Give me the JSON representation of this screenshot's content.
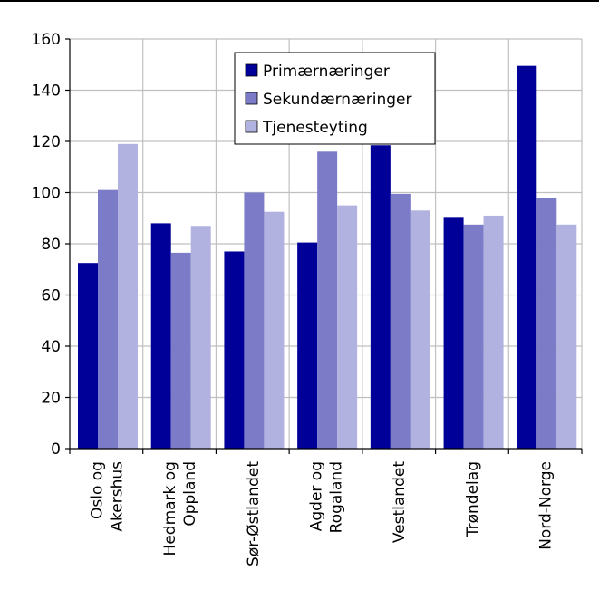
{
  "chart_data": {
    "type": "bar",
    "categories": [
      [
        "Oslo og",
        "Akershus"
      ],
      [
        "Hedmark og",
        "Oppland"
      ],
      [
        "Sør-Østlandet"
      ],
      [
        "Agder og",
        "Rogaland"
      ],
      [
        "Vestlandet"
      ],
      [
        "Trøndelag"
      ],
      [
        "Nord-Norge"
      ]
    ],
    "series": [
      {
        "name": "Primærnæringer",
        "color": "#000099",
        "values": [
          72.5,
          88,
          77,
          80.5,
          118.5,
          90.5,
          149.5
        ]
      },
      {
        "name": "Sekundærnæringer",
        "color": "#7b7bc8",
        "values": [
          101,
          76.5,
          100,
          116,
          99.5,
          87.5,
          98
        ]
      },
      {
        "name": "Tjenesteyting",
        "color": "#b2b2e0",
        "values": [
          119,
          87,
          92.5,
          95,
          93,
          91,
          87.5
        ]
      }
    ],
    "ylim": [
      0,
      160
    ],
    "yticks": [
      0,
      20,
      40,
      60,
      80,
      100,
      120,
      140,
      160
    ],
    "grid": true,
    "legend": "top-center",
    "title": "",
    "xlabel": "",
    "ylabel": ""
  }
}
